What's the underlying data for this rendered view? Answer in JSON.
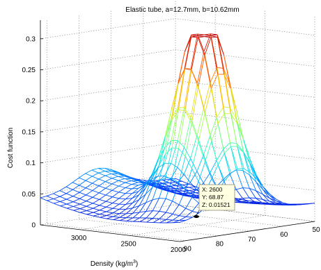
{
  "chart_data": {
    "type": "surface",
    "title": "Elastic tube, a=12.7mm, b=10.62mm",
    "zlabel": "Cost function",
    "xlabel": "Density (kg/m",
    "xlabel_superscript": "3",
    "xlabel_suffix": ")",
    "ylabel": "",
    "x_axis": {
      "quantity": "Density",
      "range": [
        2000,
        3400
      ],
      "ticks": [
        "3000",
        "2500",
        "2000"
      ]
    },
    "y_axis": {
      "range": [
        50,
        92
      ],
      "ticks": [
        "90",
        "80",
        "70",
        "60",
        "50"
      ]
    },
    "z_axis": {
      "range": [
        0,
        0.33
      ],
      "ticks": [
        "0",
        "0.05",
        "0.1",
        "0.15",
        "0.2",
        "0.25",
        "0.3"
      ]
    },
    "grid": true,
    "colormap": "jet",
    "colormap_stops": [
      "#0000bf",
      "#0040ff",
      "#00c0ff",
      "#40ffbf",
      "#c0ff40",
      "#ffc000",
      "#ff4000",
      "#bf0000"
    ],
    "datatip": {
      "x_label": "X: 2600",
      "y_label": "Y: 68.87",
      "z_label": "Z: 0.01521",
      "x": 2600,
      "y": 68.87,
      "z": 0.01521
    }
  }
}
